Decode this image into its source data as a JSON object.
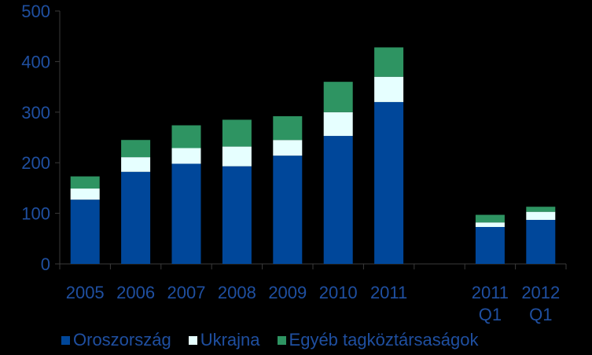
{
  "chart_data": {
    "type": "bar",
    "stacked": true,
    "categories": [
      "2005",
      "2006",
      "2007",
      "2008",
      "2009",
      "2010",
      "2011",
      "",
      "2011 Q1",
      "2012 Q1"
    ],
    "category_lines": [
      [
        "2005"
      ],
      [
        "2006"
      ],
      [
        "2007"
      ],
      [
        "2008"
      ],
      [
        "2009"
      ],
      [
        "2010"
      ],
      [
        "2011"
      ],
      [
        ""
      ],
      [
        "2011",
        "Q1"
      ],
      [
        "2012",
        "Q1"
      ]
    ],
    "series": [
      {
        "name": "Oroszország",
        "color": "#00479A",
        "values": [
          127,
          182,
          198,
          193,
          214,
          253,
          320,
          null,
          73,
          87
        ]
      },
      {
        "name": "Ukrajna",
        "color": "#E6FFFF",
        "values": [
          22,
          29,
          31,
          39,
          31,
          47,
          50,
          null,
          9,
          16
        ]
      },
      {
        "name": "Egyéb tagköztársaságok",
        "color": "#2E9462",
        "values": [
          24,
          34,
          45,
          53,
          47,
          60,
          58,
          null,
          15,
          10
        ]
      }
    ],
    "ylim": [
      0,
      500
    ],
    "yticks": [
      0,
      100,
      200,
      300,
      400,
      500
    ],
    "xlabel": "",
    "ylabel": "",
    "grid": false,
    "legend_position": "bottom",
    "axis_color": "#3A3A3A",
    "text_color": "#1F4FA0",
    "background": "#000000"
  }
}
